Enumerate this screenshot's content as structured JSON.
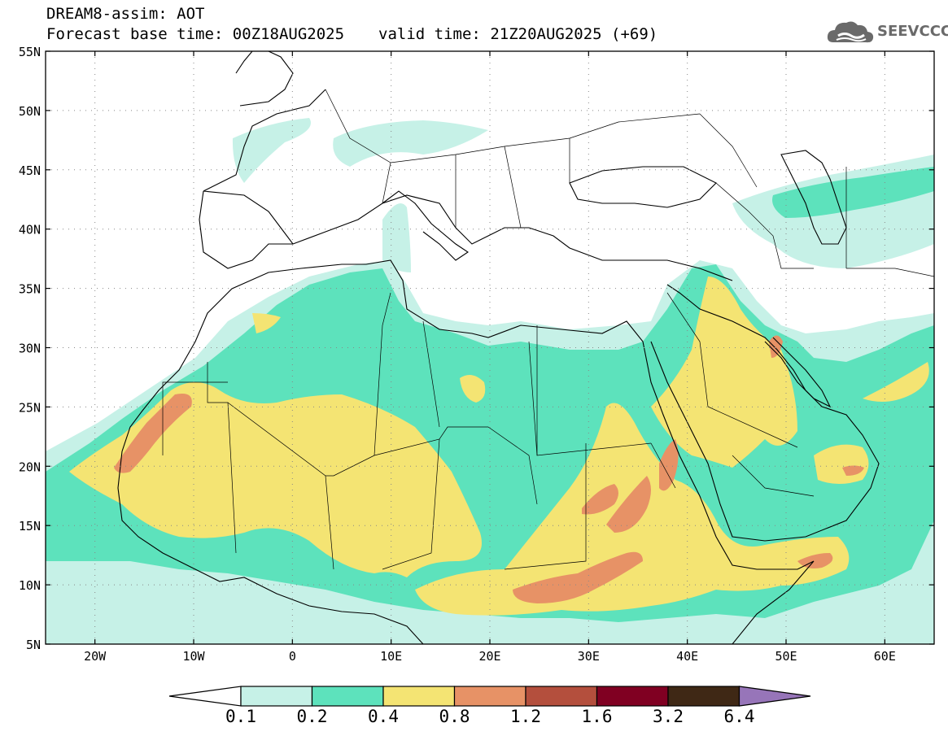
{
  "header": {
    "title_line1": "DREAM8-assim: AOT",
    "base_time": "Forecast base time: 00Z18AUG2025",
    "valid_time": "valid time: 21Z20AUG2025 (+69)"
  },
  "logo": {
    "text": "SEEVCCC",
    "icon": "cloud-icon"
  },
  "map": {
    "lon_range": [
      -25,
      65
    ],
    "lat_range": [
      5,
      55
    ],
    "lat_ticks": [
      "55N",
      "50N",
      "45N",
      "40N",
      "35N",
      "30N",
      "25N",
      "20N",
      "15N",
      "10N",
      "5N"
    ],
    "lat_values": [
      55,
      50,
      45,
      40,
      35,
      30,
      25,
      20,
      15,
      10,
      5
    ],
    "lon_ticks": [
      "20W",
      "10W",
      "0",
      "10E",
      "20E",
      "30E",
      "40E",
      "50E",
      "60E"
    ],
    "lon_values": [
      -20,
      -10,
      0,
      10,
      20,
      30,
      40,
      50,
      60
    ]
  },
  "colorbar": {
    "labels": [
      "0.1",
      "0.2",
      "0.4",
      "0.8",
      "1.2",
      "1.6",
      "3.2",
      "6.4"
    ],
    "colors": [
      "#c6f1e7",
      "#5de2bc",
      "#f4e473",
      "#e79266",
      "#b44f3d",
      "#800022",
      "#3f2815",
      "#9775b9"
    ],
    "under_color": "#ffffff",
    "over_color": "#9775b9"
  }
}
